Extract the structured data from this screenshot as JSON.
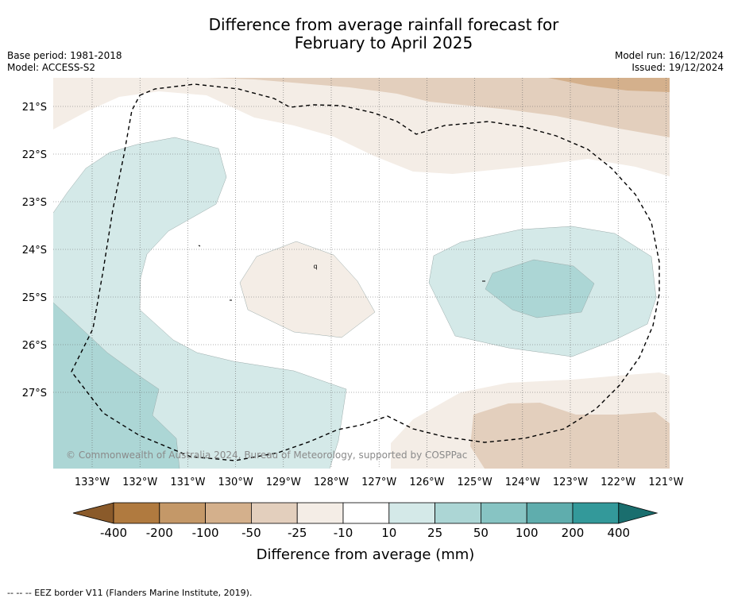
{
  "title": {
    "line1": "Difference from average rainfall forecast for",
    "line2": "February to April 2025"
  },
  "meta_left": {
    "base_period": "Base period: 1981-2018",
    "model": "Model: ACCESS-S2"
  },
  "meta_right": {
    "model_run": "Model run: 16/12/2024",
    "issued": "Issued: 19/12/2024"
  },
  "map": {
    "longitude_labels": [
      "133°W",
      "132°W",
      "131°W",
      "130°W",
      "129°W",
      "128°W",
      "127°W",
      "126°W",
      "125°W",
      "124°W",
      "123°W",
      "122°W",
      "121°W"
    ],
    "latitude_labels": [
      "21°S",
      "22°S",
      "23°S",
      "24°S",
      "25°S",
      "26°S",
      "27°S"
    ],
    "copyright": "© Commonwealth of Australia 2024, Bureau of Meteorology, supported by COSPPac",
    "point_label": "q"
  },
  "colorbar": {
    "tick_labels": [
      "-400",
      "-200",
      "-100",
      "-50",
      "-25",
      "-10",
      "10",
      "25",
      "50",
      "100",
      "200",
      "400"
    ],
    "label": "Difference from average (mm)",
    "colors": [
      "#8a5a2a",
      "#b07a3f",
      "#c49868",
      "#d4b08c",
      "#e3cfbd",
      "#f4ede6",
      "#ffffff",
      "#d4e9e8",
      "#acd6d5",
      "#87c4c3",
      "#5fadad",
      "#33999a",
      "#1a6e6e"
    ]
  },
  "footer": {
    "legend_text": "--  --  -- EEZ border V11 (Flanders Marine Institute, 2019)."
  }
}
